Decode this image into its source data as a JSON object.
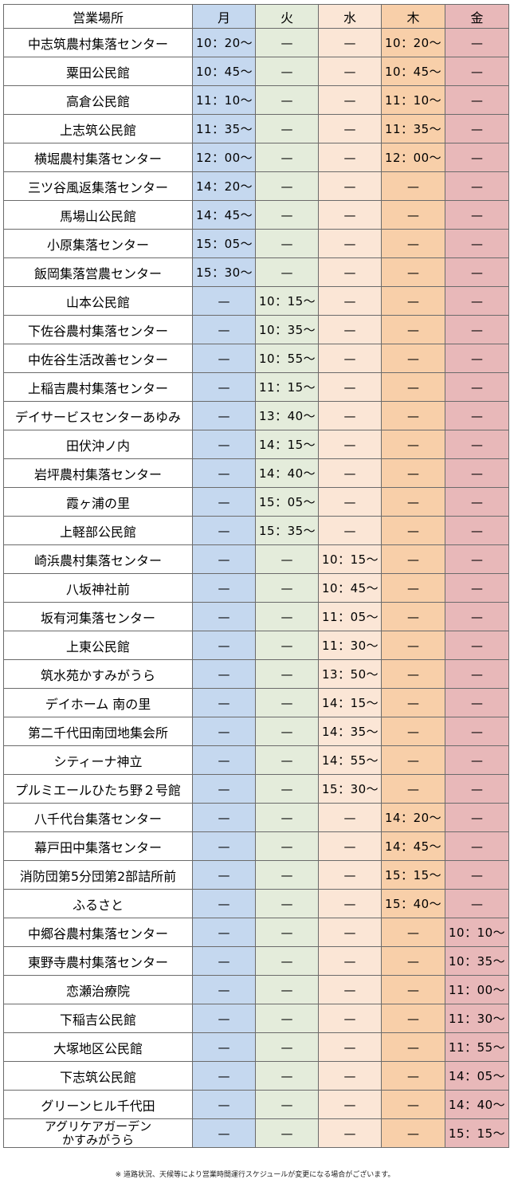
{
  "header": {
    "place": "営業場所",
    "days": [
      "月",
      "火",
      "水",
      "木",
      "金"
    ]
  },
  "colors": {
    "mon": "#c5d8ef",
    "tue": "#e4ecdb",
    "wed": "#fbe6d6",
    "thu": "#f8cfa9",
    "fri": "#e8b8b9",
    "border": "#6b6b6b"
  },
  "rows": [
    {
      "place": "中志筑農村集落センター",
      "times": [
        "10：20～",
        "—",
        "—",
        "10：20～",
        "—"
      ]
    },
    {
      "place": "粟田公民館",
      "times": [
        "10：45～",
        "—",
        "—",
        "10：45～",
        "—"
      ]
    },
    {
      "place": "高倉公民館",
      "times": [
        "11：10～",
        "—",
        "—",
        "11：10～",
        "—"
      ]
    },
    {
      "place": "上志筑公民館",
      "times": [
        "11：35～",
        "—",
        "—",
        "11：35～",
        "—"
      ]
    },
    {
      "place": "横堀農村集落センター",
      "times": [
        "12：00～",
        "—",
        "—",
        "12：00～",
        "—"
      ]
    },
    {
      "place": "三ツ谷風返集落センター",
      "times": [
        "14：20～",
        "—",
        "—",
        "—",
        "—"
      ]
    },
    {
      "place": "馬場山公民館",
      "times": [
        "14：45～",
        "—",
        "—",
        "—",
        "—"
      ]
    },
    {
      "place": "小原集落センター",
      "times": [
        "15：05～",
        "—",
        "—",
        "—",
        "—"
      ]
    },
    {
      "place": "飯岡集落営農センター",
      "times": [
        "15：30～",
        "—",
        "—",
        "—",
        "—"
      ]
    },
    {
      "place": "山本公民館",
      "times": [
        "—",
        "10：15～",
        "—",
        "—",
        "—"
      ]
    },
    {
      "place": "下佐谷農村集落センター",
      "times": [
        "—",
        "10：35～",
        "—",
        "—",
        "—"
      ]
    },
    {
      "place": "中佐谷生活改善センター",
      "times": [
        "—",
        "10：55～",
        "—",
        "—",
        "—"
      ]
    },
    {
      "place": "上稲吉農村集落センター",
      "times": [
        "—",
        "11：15～",
        "—",
        "—",
        "—"
      ]
    },
    {
      "place": "デイサービスセンターあゆみ",
      "times": [
        "—",
        "13：40～",
        "—",
        "—",
        "—"
      ]
    },
    {
      "place": "田伏沖ノ内",
      "times": [
        "—",
        "14：15～",
        "—",
        "—",
        "—"
      ]
    },
    {
      "place": "岩坪農村集落センター",
      "times": [
        "—",
        "14：40～",
        "—",
        "—",
        "—"
      ]
    },
    {
      "place": "霞ヶ浦の里",
      "times": [
        "—",
        "15：05～",
        "—",
        "—",
        "—"
      ]
    },
    {
      "place": "上軽部公民館",
      "times": [
        "—",
        "15：35～",
        "—",
        "—",
        "—"
      ]
    },
    {
      "place": "崎浜農村集落センター",
      "times": [
        "—",
        "—",
        "10：15～",
        "—",
        "—"
      ]
    },
    {
      "place": "八坂神社前",
      "times": [
        "—",
        "—",
        "10：45～",
        "—",
        "—"
      ]
    },
    {
      "place": "坂有河集落センター",
      "times": [
        "—",
        "—",
        "11：05～",
        "—",
        "—"
      ]
    },
    {
      "place": "上東公民館",
      "times": [
        "—",
        "—",
        "11：30～",
        "—",
        "—"
      ]
    },
    {
      "place": "筑水苑かすみがうら",
      "times": [
        "—",
        "—",
        "13：50～",
        "—",
        "—"
      ]
    },
    {
      "place": "デイホーム 南の里",
      "times": [
        "—",
        "—",
        "14：15～",
        "—",
        "—"
      ]
    },
    {
      "place": "第二千代田南団地集会所",
      "times": [
        "—",
        "—",
        "14：35～",
        "—",
        "—"
      ]
    },
    {
      "place": "シティーナ神立",
      "times": [
        "—",
        "—",
        "14：55～",
        "—",
        "—"
      ]
    },
    {
      "place": "プルミエールひたち野２号館",
      "times": [
        "—",
        "—",
        "15：30～",
        "—",
        "—"
      ]
    },
    {
      "place": "八千代台集落センター",
      "times": [
        "—",
        "—",
        "—",
        "14：20～",
        "—"
      ]
    },
    {
      "place": "幕戸田中集落センター",
      "times": [
        "—",
        "—",
        "—",
        "14：45～",
        "—"
      ]
    },
    {
      "place": "消防団第5分団第2部詰所前",
      "times": [
        "—",
        "—",
        "—",
        "15：15～",
        "—"
      ]
    },
    {
      "place": "ふるさと",
      "times": [
        "—",
        "—",
        "—",
        "15：40～",
        "—"
      ]
    },
    {
      "place": "中郷谷農村集落センター",
      "times": [
        "—",
        "—",
        "—",
        "—",
        "10：10～"
      ]
    },
    {
      "place": "東野寺農村集落センター",
      "times": [
        "—",
        "—",
        "—",
        "—",
        "10：35～"
      ]
    },
    {
      "place": "恋瀬治療院",
      "times": [
        "—",
        "—",
        "—",
        "—",
        "11：00～"
      ]
    },
    {
      "place": "下稲吉公民館",
      "times": [
        "—",
        "—",
        "—",
        "—",
        "11：30～"
      ]
    },
    {
      "place": "大塚地区公民館",
      "times": [
        "—",
        "—",
        "—",
        "—",
        "11：55～"
      ]
    },
    {
      "place": "下志筑公民館",
      "times": [
        "—",
        "—",
        "—",
        "—",
        "14：05～"
      ]
    },
    {
      "place": "グリーンヒル千代田",
      "times": [
        "—",
        "—",
        "—",
        "—",
        "14：40～"
      ]
    },
    {
      "place": "アグリケアガーデン\nかすみがうら",
      "times": [
        "—",
        "—",
        "—",
        "—",
        "15：15～"
      ]
    }
  ],
  "footnote": "※ 道路状況、天候等により営業時間運行スケジュールが変更になる場合がございます。"
}
